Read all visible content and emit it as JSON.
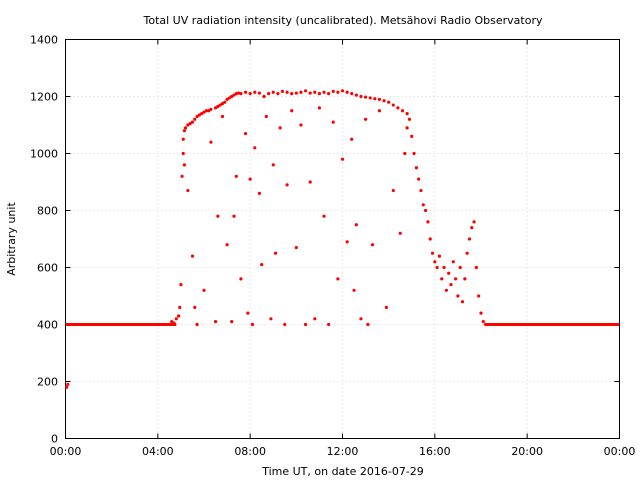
{
  "chart_data": {
    "type": "scatter",
    "title": "Total UV radiation intensity (uncalibrated). Metsähovi Radio Observatory",
    "xlabel": "Time UT, on date 2016-07-29",
    "ylabel": "Arbitrary unit",
    "xlim": [
      0,
      24
    ],
    "ylim": [
      0,
      1400
    ],
    "x_ticks": [
      0,
      4,
      8,
      12,
      16,
      20,
      24
    ],
    "x_tick_labels": [
      "00:00",
      "04:00",
      "08:00",
      "12:00",
      "16:00",
      "20:00",
      "00:00"
    ],
    "y_ticks": [
      0,
      200,
      400,
      600,
      800,
      1000,
      1200,
      1400
    ],
    "y_tick_labels": [
      "0",
      "200",
      "400",
      "600",
      "800",
      "1000",
      "1200",
      "1400"
    ],
    "grid": true,
    "marker_color": "#ff0000",
    "series": [
      {
        "baseline_night": [
          [
            0.0,
            400
          ],
          [
            4.8,
            400
          ],
          [
            18.2,
            400
          ],
          [
            24.0,
            400
          ]
        ],
        "outliers": [
          [
            0.05,
            180
          ],
          [
            0.1,
            190
          ]
        ],
        "rise": [
          [
            4.6,
            410
          ],
          [
            4.7,
            405
          ],
          [
            4.8,
            420
          ],
          [
            4.9,
            430
          ],
          [
            4.95,
            460
          ],
          [
            5.0,
            540
          ],
          [
            5.05,
            920
          ],
          [
            5.1,
            1050
          ],
          [
            5.15,
            1080
          ],
          [
            5.2,
            1090
          ],
          [
            5.3,
            1100
          ],
          [
            5.4,
            1105
          ],
          [
            5.5,
            1110
          ],
          [
            5.6,
            1120
          ],
          [
            5.7,
            1130
          ],
          [
            5.8,
            1135
          ],
          [
            5.9,
            1140
          ],
          [
            6.0,
            1145
          ],
          [
            6.1,
            1150
          ],
          [
            6.2,
            1150
          ],
          [
            6.3,
            1155
          ],
          [
            6.5,
            1160
          ],
          [
            6.6,
            1165
          ],
          [
            6.7,
            1170
          ],
          [
            6.8,
            1175
          ],
          [
            6.9,
            1180
          ],
          [
            7.0,
            1190
          ],
          [
            7.1,
            1195
          ],
          [
            7.2,
            1200
          ],
          [
            7.3,
            1205
          ],
          [
            7.4,
            1210
          ],
          [
            7.5,
            1212
          ],
          [
            7.6,
            1210
          ]
        ],
        "midday_top": [
          [
            7.8,
            1215
          ],
          [
            8.0,
            1210
          ],
          [
            8.2,
            1215
          ],
          [
            8.4,
            1212
          ],
          [
            8.6,
            1200
          ],
          [
            8.8,
            1210
          ],
          [
            9.0,
            1215
          ],
          [
            9.2,
            1210
          ],
          [
            9.4,
            1218
          ],
          [
            9.6,
            1215
          ],
          [
            9.8,
            1210
          ],
          [
            10.0,
            1212
          ],
          [
            10.2,
            1215
          ],
          [
            10.4,
            1220
          ],
          [
            10.6,
            1212
          ],
          [
            10.8,
            1215
          ],
          [
            11.0,
            1210
          ],
          [
            11.2,
            1215
          ],
          [
            11.4,
            1210
          ],
          [
            11.6,
            1218
          ],
          [
            11.8,
            1215
          ],
          [
            12.0,
            1220
          ],
          [
            12.2,
            1215
          ],
          [
            12.4,
            1210
          ],
          [
            12.6,
            1205
          ],
          [
            12.8,
            1200
          ],
          [
            13.0,
            1198
          ],
          [
            13.2,
            1195
          ],
          [
            13.4,
            1192
          ],
          [
            13.6,
            1190
          ],
          [
            13.8,
            1185
          ],
          [
            14.0,
            1180
          ],
          [
            14.2,
            1170
          ],
          [
            14.4,
            1160
          ],
          [
            14.6,
            1150
          ],
          [
            14.8,
            1140
          ],
          [
            14.9,
            1120
          ]
        ],
        "midday_scatter": [
          [
            5.1,
            1000
          ],
          [
            5.15,
            960
          ],
          [
            5.3,
            870
          ],
          [
            5.5,
            640
          ],
          [
            5.6,
            460
          ],
          [
            5.7,
            400
          ],
          [
            6.0,
            520
          ],
          [
            6.3,
            1040
          ],
          [
            6.5,
            410
          ],
          [
            6.6,
            780
          ],
          [
            6.8,
            1130
          ],
          [
            7.0,
            680
          ],
          [
            7.2,
            410
          ],
          [
            7.3,
            780
          ],
          [
            7.4,
            920
          ],
          [
            7.6,
            560
          ],
          [
            7.8,
            1070
          ],
          [
            7.9,
            440
          ],
          [
            8.0,
            910
          ],
          [
            8.1,
            400
          ],
          [
            8.2,
            1020
          ],
          [
            8.4,
            860
          ],
          [
            8.5,
            610
          ],
          [
            8.7,
            1130
          ],
          [
            8.9,
            420
          ],
          [
            9.0,
            960
          ],
          [
            9.1,
            650
          ],
          [
            9.3,
            1090
          ],
          [
            9.5,
            400
          ],
          [
            9.6,
            890
          ],
          [
            9.8,
            1150
          ],
          [
            10.0,
            670
          ],
          [
            10.2,
            1100
          ],
          [
            10.4,
            400
          ],
          [
            10.6,
            900
          ],
          [
            10.8,
            420
          ],
          [
            11.0,
            1160
          ],
          [
            11.2,
            780
          ],
          [
            11.4,
            400
          ],
          [
            11.6,
            1110
          ],
          [
            11.8,
            560
          ],
          [
            12.0,
            980
          ],
          [
            12.2,
            690
          ],
          [
            12.4,
            1050
          ],
          [
            12.5,
            520
          ],
          [
            12.6,
            750
          ],
          [
            12.8,
            420
          ],
          [
            13.0,
            1120
          ],
          [
            13.1,
            400
          ],
          [
            13.3,
            680
          ],
          [
            13.6,
            1150
          ],
          [
            13.9,
            460
          ],
          [
            14.2,
            870
          ],
          [
            14.5,
            720
          ],
          [
            14.7,
            1000
          ]
        ],
        "afternoon_decline": [
          [
            14.8,
            1090
          ],
          [
            15.0,
            1060
          ],
          [
            15.1,
            1000
          ],
          [
            15.2,
            950
          ],
          [
            15.3,
            910
          ],
          [
            15.4,
            870
          ],
          [
            15.5,
            820
          ],
          [
            15.6,
            800
          ],
          [
            15.7,
            760
          ],
          [
            15.8,
            700
          ],
          [
            15.9,
            650
          ],
          [
            16.0,
            620
          ],
          [
            16.1,
            600
          ],
          [
            16.2,
            640
          ],
          [
            16.3,
            560
          ],
          [
            16.4,
            600
          ],
          [
            16.5,
            520
          ],
          [
            16.6,
            580
          ],
          [
            16.7,
            540
          ],
          [
            16.8,
            620
          ],
          [
            16.9,
            560
          ],
          [
            17.0,
            500
          ],
          [
            17.1,
            600
          ],
          [
            17.2,
            480
          ],
          [
            17.3,
            560
          ],
          [
            17.4,
            650
          ],
          [
            17.5,
            700
          ],
          [
            17.6,
            740
          ],
          [
            17.7,
            760
          ],
          [
            17.8,
            600
          ],
          [
            17.9,
            500
          ],
          [
            18.0,
            440
          ],
          [
            18.1,
            410
          ],
          [
            18.2,
            400
          ]
        ]
      }
    ]
  }
}
